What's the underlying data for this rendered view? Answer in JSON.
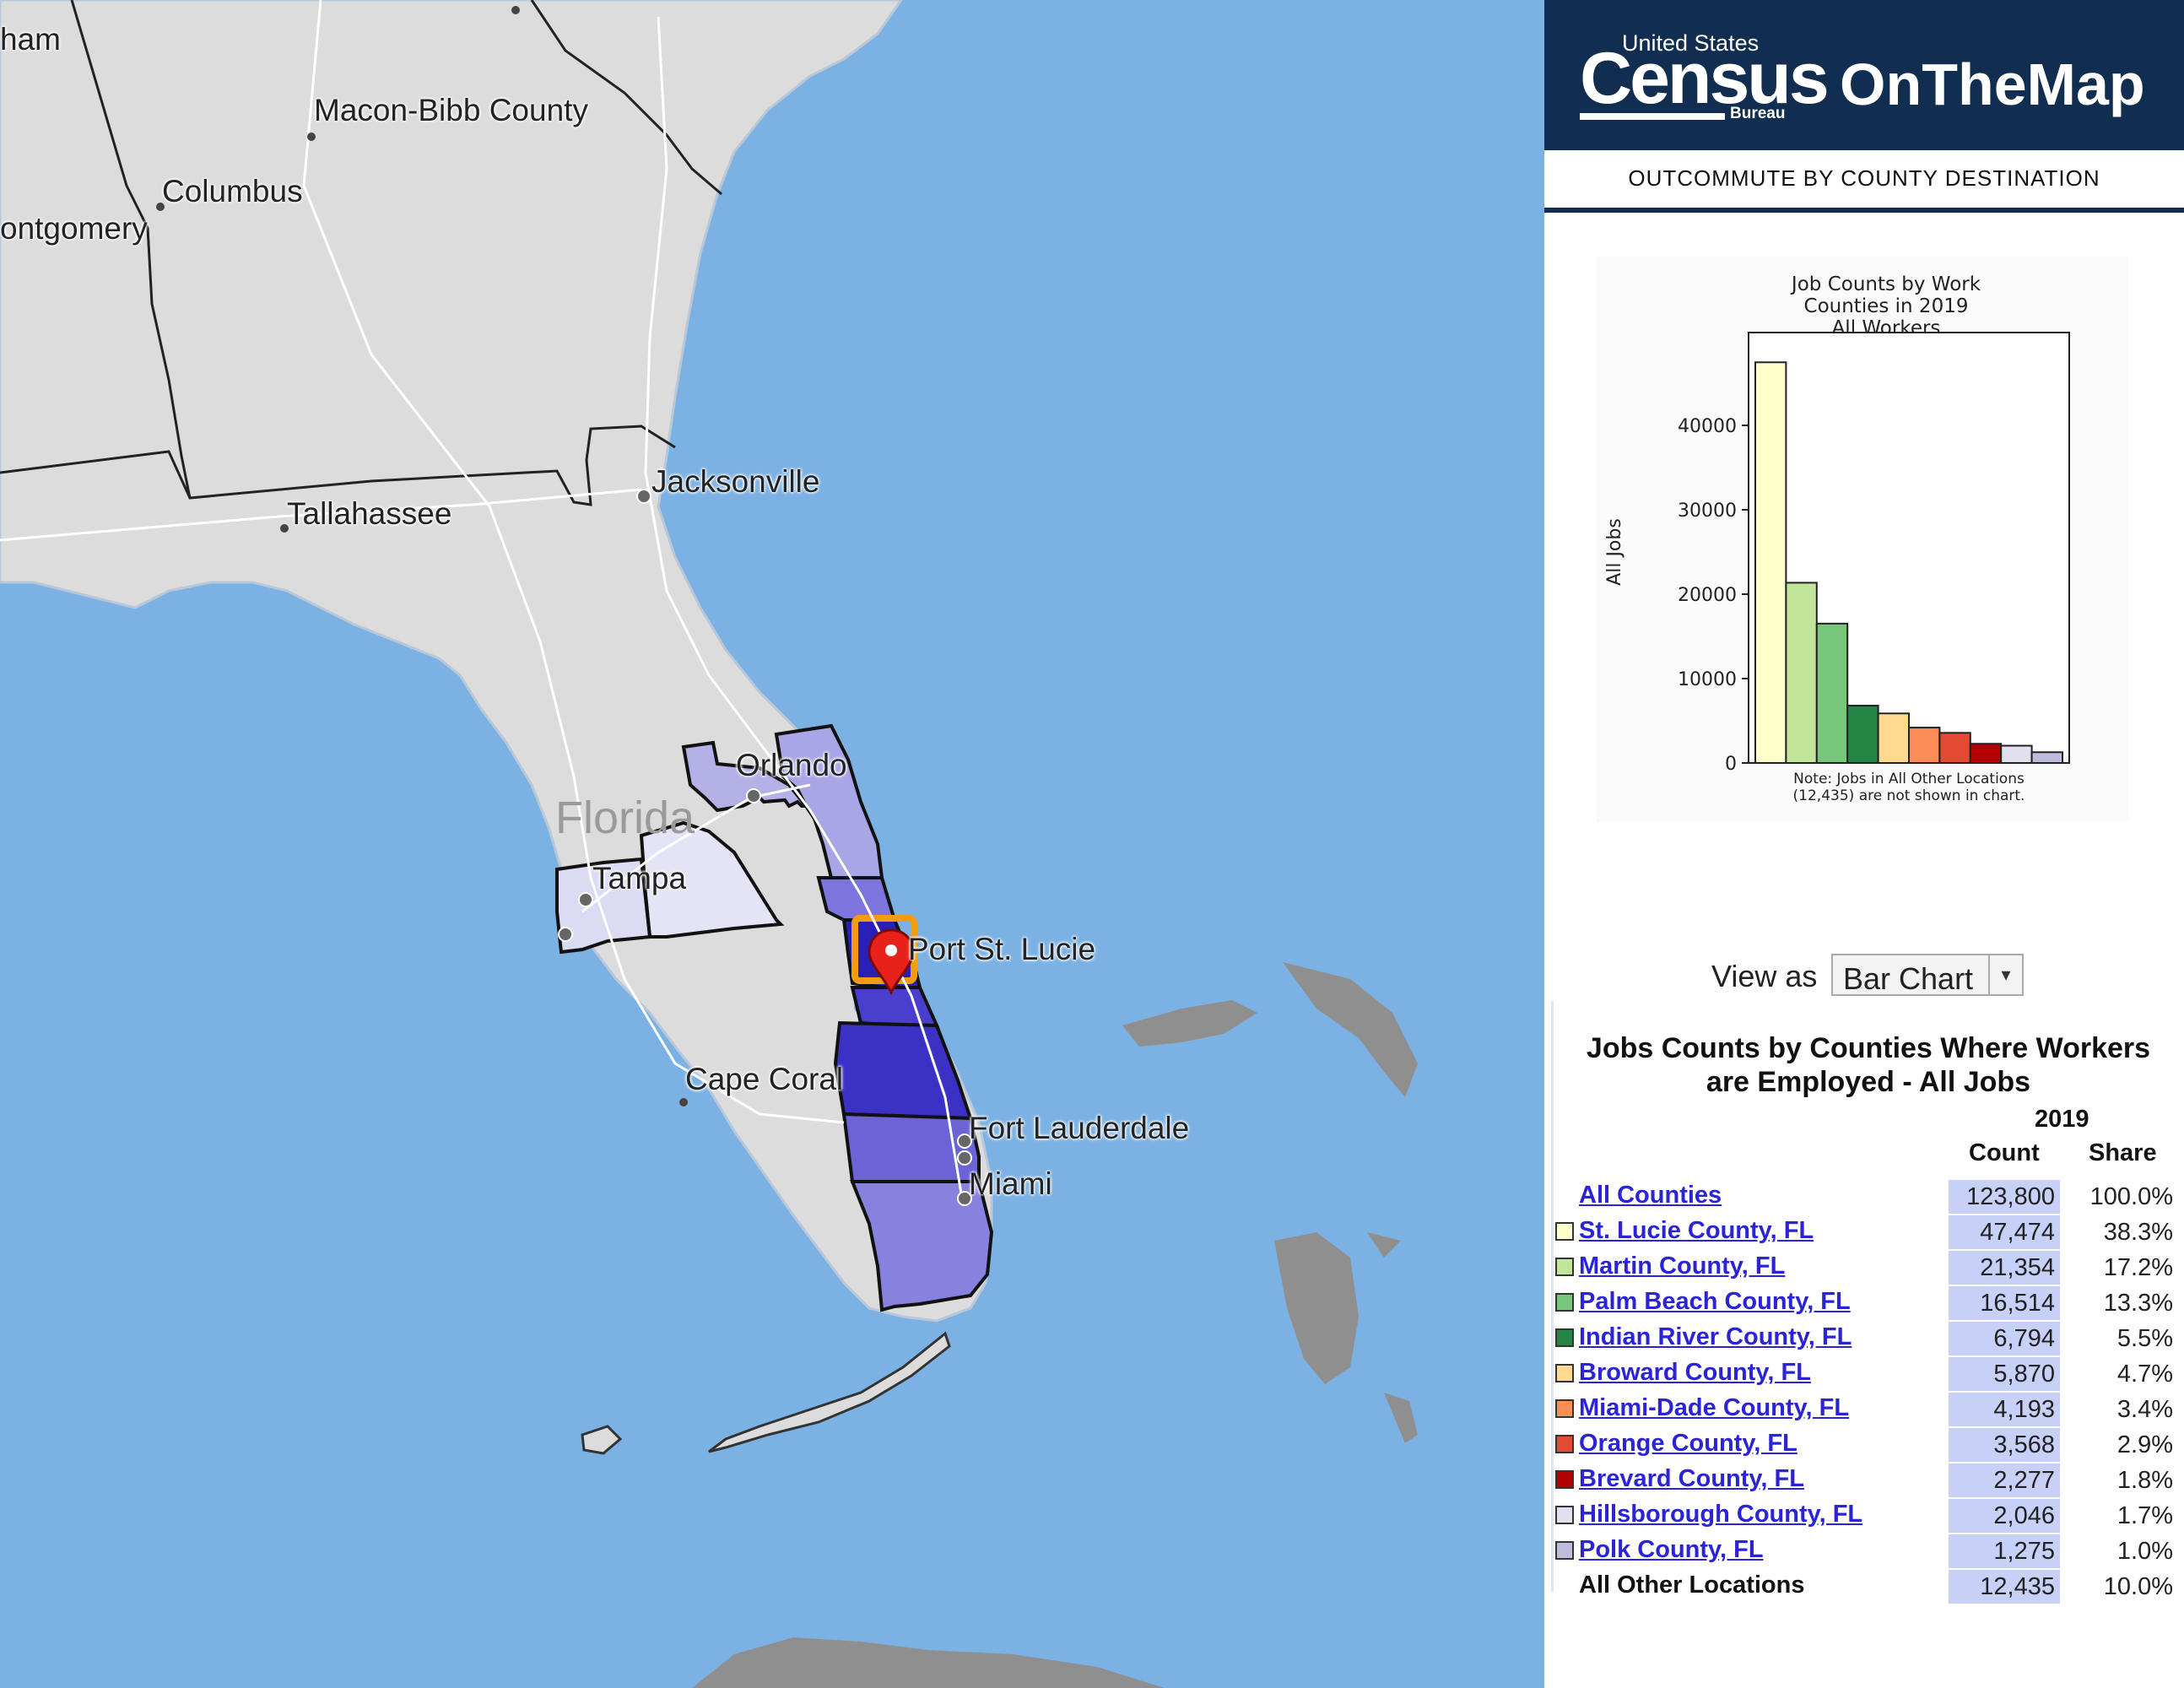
{
  "map": {
    "state_label": "Florida",
    "cities": [
      {
        "name": "ham",
        "id": "city-ham"
      },
      {
        "name": "Macon-Bibb County",
        "id": "city-macon"
      },
      {
        "name": "Columbus",
        "id": "city-columbus"
      },
      {
        "name": "ontgomery",
        "id": "city-montgomery"
      },
      {
        "name": "Jacksonville",
        "id": "city-jacksonville"
      },
      {
        "name": "Tallahassee",
        "id": "city-tallahassee"
      },
      {
        "name": "Orlando",
        "id": "city-orlando"
      },
      {
        "name": "Tampa",
        "id": "city-tampa"
      },
      {
        "name": "Port St. Lucie",
        "id": "city-port-st-lucie"
      },
      {
        "name": "Cape Coral",
        "id": "city-cape-coral"
      },
      {
        "name": "Fort Lauderdale",
        "id": "city-fort-lauderdale"
      },
      {
        "name": "Miami",
        "id": "city-miami"
      }
    ],
    "colors": {
      "water": "#7cb2e3",
      "land": "#dcdcdc",
      "foreign_land": "#8f8f8f",
      "selection_outline": "#f39c12",
      "marker": "#e8221b"
    }
  },
  "header": {
    "census_top": "United States",
    "census_word": "Census",
    "census_bureau": "Bureau",
    "app_name": "OnTheMap",
    "subtitle": "OUTCOMMUTE BY COUNTY DESTINATION",
    "bg_color": "#112e51"
  },
  "chart_data": {
    "type": "bar",
    "title": "Job Counts by Work\nCounties in 2019\nAll Workers",
    "title_lines": [
      "Job Counts by Work",
      "Counties in 2019",
      "All Workers"
    ],
    "ylabel": "All Jobs",
    "xlabel": "",
    "ylim": [
      0,
      50000
    ],
    "yticks": [
      0,
      10000,
      20000,
      30000,
      40000
    ],
    "ytick_labels": [
      "0",
      "10000",
      "20000",
      "30000",
      "40000"
    ],
    "categories": [
      "St. Lucie County, FL",
      "Martin County, FL",
      "Palm Beach County, FL",
      "Indian River County, FL",
      "Broward County, FL",
      "Miami-Dade County, FL",
      "Orange County, FL",
      "Brevard County, FL",
      "Hillsborough County, FL",
      "Polk County, FL"
    ],
    "values": [
      47474,
      21354,
      16514,
      6794,
      5870,
      4193,
      3568,
      2277,
      2046,
      1275
    ],
    "colors": [
      "#ffffcc",
      "#c2e699",
      "#78c679",
      "#238443",
      "#fed98e",
      "#fc8d59",
      "#e34a33",
      "#b30000",
      "#e0e0ee",
      "#bcbddc"
    ],
    "note_lines": [
      "Note: Jobs in All Other Locations",
      "(12,435) are not shown in chart."
    ],
    "grid": false
  },
  "view": {
    "label": "View as",
    "selected": "Bar Chart",
    "arrow": "▾"
  },
  "table": {
    "title_line1": "Jobs Counts by Counties Where Workers",
    "title_line2": "are Employed - All Jobs",
    "year": "2019",
    "col_count": "Count",
    "col_share": "Share",
    "rows": [
      {
        "name": "All Counties",
        "count": "123,800",
        "share": "100.0%",
        "link": true,
        "swatch": null
      },
      {
        "name": "St. Lucie County, FL",
        "count": "47,474",
        "share": "38.3%",
        "link": true,
        "swatch": "#ffffcc"
      },
      {
        "name": "Martin County, FL",
        "count": "21,354",
        "share": "17.2%",
        "link": true,
        "swatch": "#c2e699"
      },
      {
        "name": "Palm Beach County, FL",
        "count": "16,514",
        "share": "13.3%",
        "link": true,
        "swatch": "#78c679"
      },
      {
        "name": "Indian River County, FL",
        "count": "6,794",
        "share": "5.5%",
        "link": true,
        "swatch": "#238443"
      },
      {
        "name": "Broward County, FL",
        "count": "5,870",
        "share": "4.7%",
        "link": true,
        "swatch": "#fed98e"
      },
      {
        "name": "Miami-Dade County, FL",
        "count": "4,193",
        "share": "3.4%",
        "link": true,
        "swatch": "#fc8d59"
      },
      {
        "name": "Orange County, FL",
        "count": "3,568",
        "share": "2.9%",
        "link": true,
        "swatch": "#e34a33"
      },
      {
        "name": "Brevard County, FL",
        "count": "2,277",
        "share": "1.8%",
        "link": true,
        "swatch": "#b30000"
      },
      {
        "name": "Hillsborough County, FL",
        "count": "2,046",
        "share": "1.7%",
        "link": true,
        "swatch": "#e0e0ee"
      },
      {
        "name": "Polk County, FL",
        "count": "1,275",
        "share": "1.0%",
        "link": true,
        "swatch": "#bcbddc"
      },
      {
        "name": "All Other Locations",
        "count": "12,435",
        "share": "10.0%",
        "link": false,
        "swatch": null
      }
    ]
  }
}
